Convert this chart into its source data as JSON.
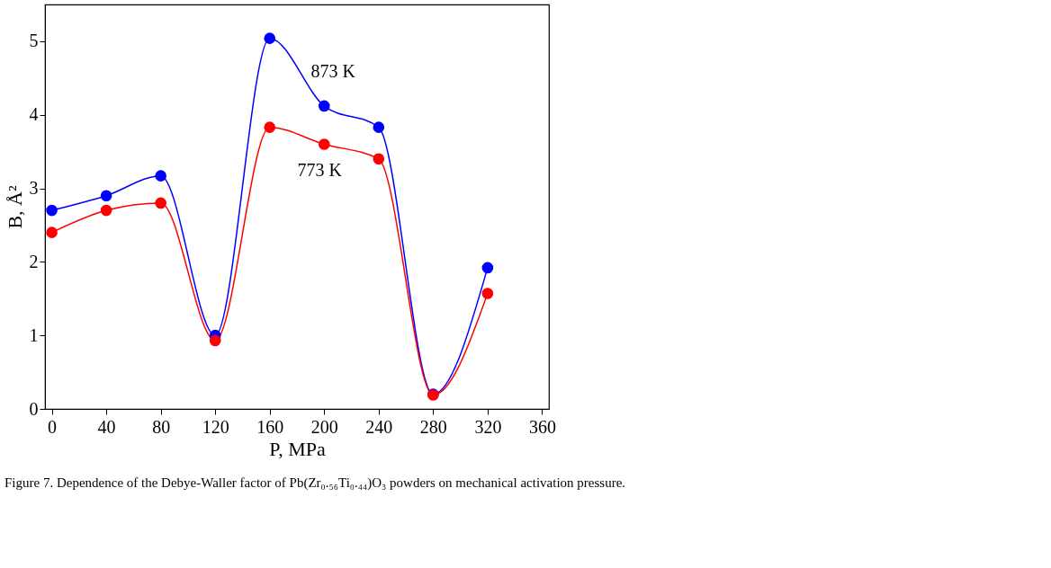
{
  "chart_data": {
    "type": "line",
    "title": "Figure 7. Dependence of the Debye-Waller factor of Pb(Zr₀.₅₆Ti₀.₄₄)O₃ powders on mechanical activation pressure.",
    "xlabel": "P, MPa",
    "ylabel": "B, Å²",
    "x": [
      0,
      40,
      80,
      120,
      160,
      200,
      240,
      280,
      320
    ],
    "series": [
      {
        "name": "873 K",
        "color": "#0000ff",
        "values": [
          2.7,
          2.9,
          3.17,
          1.0,
          5.04,
          4.12,
          3.83,
          0.2,
          1.92
        ]
      },
      {
        "name": "773 K",
        "color": "#ff0000",
        "values": [
          2.4,
          2.7,
          2.8,
          0.93,
          3.83,
          3.6,
          3.4,
          0.19,
          1.57
        ]
      }
    ],
    "xlim": [
      -5,
      365
    ],
    "ylim": [
      0,
      5.5
    ],
    "xticks": [
      0,
      40,
      80,
      120,
      160,
      200,
      240,
      280,
      320,
      360
    ],
    "yticks": [
      0,
      1,
      2,
      3,
      4,
      5
    ],
    "marker": "circle",
    "line_style": "solid",
    "grid": false,
    "legend": false
  }
}
